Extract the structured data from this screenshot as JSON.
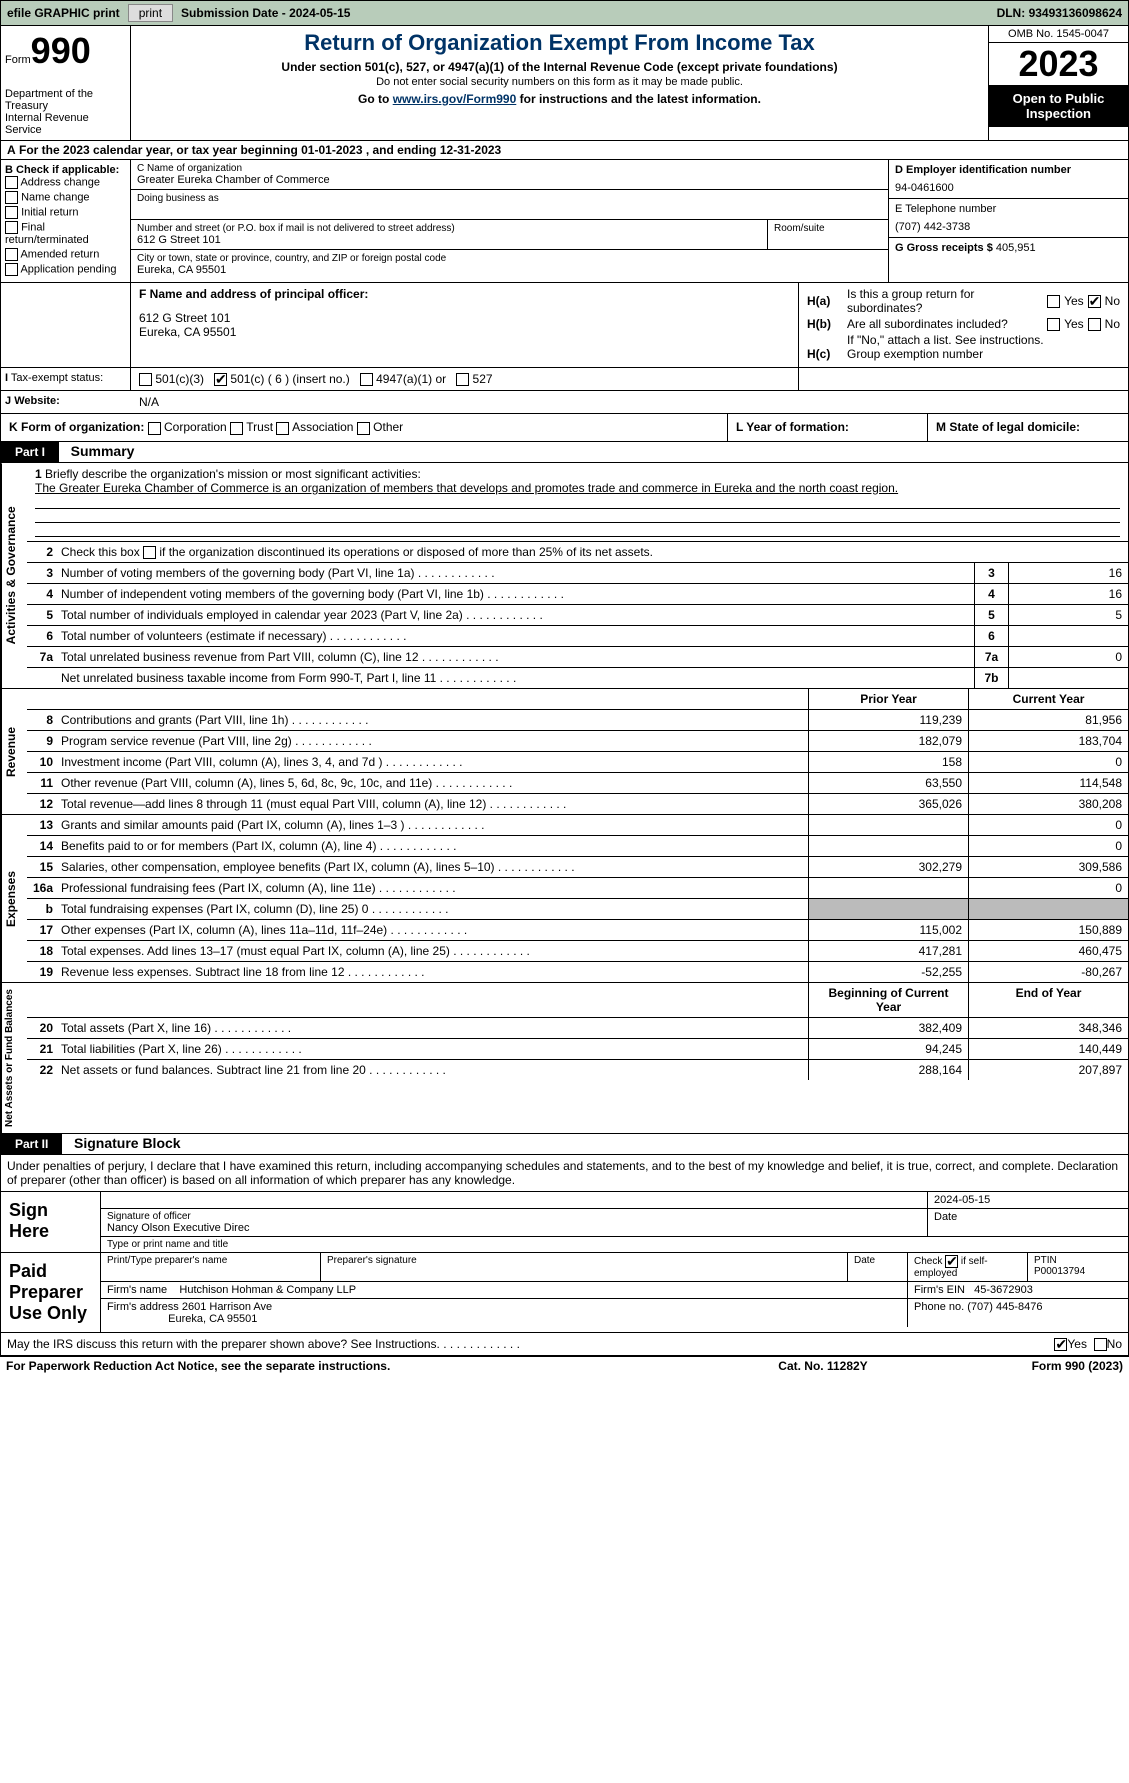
{
  "topbar": {
    "efile": "efile GRAPHIC print",
    "print_btn": "print",
    "subdate_lbl": "Submission Date - ",
    "subdate": "2024-05-15",
    "dln_lbl": "DLN: ",
    "dln": "93493136098624"
  },
  "header": {
    "form_word": "Form",
    "form_num": "990",
    "dept": "Department of the Treasury\nInternal Revenue Service",
    "title": "Return of Organization Exempt From Income Tax",
    "sub": "Under section 501(c), 527, or 4947(a)(1) of the Internal Revenue Code (except private foundations)",
    "sub2": "Do not enter social security numbers on this form as it may be made public.",
    "goto_pre": "Go to ",
    "goto_link": "www.irs.gov/Form990",
    "goto_post": " for instructions and the latest information.",
    "omb": "OMB No. 1545-0047",
    "year": "2023",
    "open": "Open to Public Inspection"
  },
  "rowA": {
    "k": "A",
    "text": "For the 2023 calendar year, or tax year beginning 01-01-2023    , and ending 12-31-2023"
  },
  "B": {
    "lbl": "B Check if applicable:",
    "items": [
      "Address change",
      "Name change",
      "Initial return",
      "Final return/terminated",
      "Amended return",
      "Application pending"
    ]
  },
  "C": {
    "name_lbl": "C Name of organization",
    "name": "Greater Eureka Chamber of Commerce",
    "dba_lbl": "Doing business as",
    "ns_lbl": "Number and street (or P.O. box if mail is not delivered to street address)",
    "ns": "612 G Street 101",
    "room_lbl": "Room/suite",
    "city_lbl": "City or town, state or province, country, and ZIP or foreign postal code",
    "city": "Eureka, CA  95501"
  },
  "D": {
    "lbl": "D Employer identification number",
    "val": "94-0461600"
  },
  "E": {
    "lbl": "E Telephone number",
    "val": "(707) 442-3738"
  },
  "G": {
    "lbl": "G Gross receipts $ ",
    "val": "405,951"
  },
  "F": {
    "lbl": "F  Name and address of principal officer:",
    "addr1": "612 G Street 101",
    "addr2": "Eureka, CA  95501"
  },
  "H": {
    "a": "Is this a group return for subordinates?",
    "b": "Are all subordinates included?",
    "note": "If \"No,\" attach a list. See instructions.",
    "c": "Group exemption number",
    "yes": "Yes",
    "no": "No"
  },
  "I": {
    "lbl": "Tax-exempt status:",
    "c3": "501(c)(3)",
    "c": "501(c) ( 6 ) (insert no.)",
    "a1": "4947(a)(1) or",
    "s527": "527"
  },
  "J": {
    "lbl": "Website:",
    "val": "N/A"
  },
  "K": {
    "lbl": "K Form of organization:",
    "opts": [
      "Corporation",
      "Trust",
      "Association",
      "Other"
    ]
  },
  "L": {
    "lbl": "L Year of formation:"
  },
  "M": {
    "lbl": "M State of legal domicile:"
  },
  "part1": {
    "hdr": "Part I",
    "title": "Summary"
  },
  "mission": {
    "n": "1",
    "lbl": "Briefly describe the organization's mission or most significant activities:",
    "text": "The Greater Eureka Chamber of Commerce is an organization of members that develops and promotes trade and commerce in Eureka and the north coast region."
  },
  "line2": {
    "n": "2",
    "text": "Check this box       if the organization discontinued its operations or disposed of more than 25% of its net assets."
  },
  "gov": {
    "label": "Activities & Governance",
    "rows": [
      {
        "n": "3",
        "t": "Number of voting members of the governing body (Part VI, line 1a)",
        "bn": "3",
        "bv": "16"
      },
      {
        "n": "4",
        "t": "Number of independent voting members of the governing body (Part VI, line 1b)",
        "bn": "4",
        "bv": "16"
      },
      {
        "n": "5",
        "t": "Total number of individuals employed in calendar year 2023 (Part V, line 2a)",
        "bn": "5",
        "bv": "5"
      },
      {
        "n": "6",
        "t": "Total number of volunteers (estimate if necessary)",
        "bn": "6",
        "bv": ""
      },
      {
        "n": "7a",
        "t": "Total unrelated business revenue from Part VIII, column (C), line 12",
        "bn": "7a",
        "bv": "0"
      },
      {
        "n": "",
        "t": "Net unrelated business taxable income from Form 990-T, Part I, line 11",
        "bn": "7b",
        "bv": ""
      }
    ]
  },
  "rev": {
    "label": "Revenue",
    "hdr_py": "Prior Year",
    "hdr_cy": "Current Year",
    "rows": [
      {
        "n": "8",
        "t": "Contributions and grants (Part VIII, line 1h)",
        "py": "119,239",
        "cy": "81,956"
      },
      {
        "n": "9",
        "t": "Program service revenue (Part VIII, line 2g)",
        "py": "182,079",
        "cy": "183,704"
      },
      {
        "n": "10",
        "t": "Investment income (Part VIII, column (A), lines 3, 4, and 7d )",
        "py": "158",
        "cy": "0"
      },
      {
        "n": "11",
        "t": "Other revenue (Part VIII, column (A), lines 5, 6d, 8c, 9c, 10c, and 11e)",
        "py": "63,550",
        "cy": "114,548"
      },
      {
        "n": "12",
        "t": "Total revenue—add lines 8 through 11 (must equal Part VIII, column (A), line 12)",
        "py": "365,026",
        "cy": "380,208"
      }
    ]
  },
  "exp": {
    "label": "Expenses",
    "rows": [
      {
        "n": "13",
        "t": "Grants and similar amounts paid (Part IX, column (A), lines 1–3 )",
        "py": "",
        "cy": "0"
      },
      {
        "n": "14",
        "t": "Benefits paid to or for members (Part IX, column (A), line 4)",
        "py": "",
        "cy": "0"
      },
      {
        "n": "15",
        "t": "Salaries, other compensation, employee benefits (Part IX, column (A), lines 5–10)",
        "py": "302,279",
        "cy": "309,586"
      },
      {
        "n": "16a",
        "t": "Professional fundraising fees (Part IX, column (A), line 11e)",
        "py": "",
        "cy": "0"
      },
      {
        "n": "b",
        "t": "Total fundraising expenses (Part IX, column (D), line 25) 0",
        "py": "SHADE",
        "cy": "SHADE"
      },
      {
        "n": "17",
        "t": "Other expenses (Part IX, column (A), lines 11a–11d, 11f–24e)",
        "py": "115,002",
        "cy": "150,889"
      },
      {
        "n": "18",
        "t": "Total expenses. Add lines 13–17 (must equal Part IX, column (A), line 25)",
        "py": "417,281",
        "cy": "460,475"
      },
      {
        "n": "19",
        "t": "Revenue less expenses. Subtract line 18 from line 12",
        "py": "-52,255",
        "cy": "-80,267"
      }
    ]
  },
  "net": {
    "label": "Net Assets or Fund Balances",
    "hdr_py": "Beginning of Current Year",
    "hdr_cy": "End of Year",
    "rows": [
      {
        "n": "20",
        "t": "Total assets (Part X, line 16)",
        "py": "382,409",
        "cy": "348,346"
      },
      {
        "n": "21",
        "t": "Total liabilities (Part X, line 26)",
        "py": "94,245",
        "cy": "140,449"
      },
      {
        "n": "22",
        "t": "Net assets or fund balances. Subtract line 21 from line 20",
        "py": "288,164",
        "cy": "207,897"
      }
    ]
  },
  "part2": {
    "hdr": "Part II",
    "title": "Signature Block"
  },
  "sig": {
    "decl": "Under penalties of perjury, I declare that I have examined this return, including accompanying schedules and statements, and to the best of my knowledge and belief, it is true, correct, and complete. Declaration of preparer (other than officer) is based on all information of which preparer has any knowledge.",
    "sign_here": "Sign Here",
    "sig_off": "Signature of officer",
    "date": "2024-05-15",
    "officer": "Nancy Olson  Executive Direc",
    "type_lbl": "Type or print name and title",
    "paid": "Paid Preparer Use Only",
    "prep_name_lbl": "Print/Type preparer's name",
    "prep_sig_lbl": "Preparer's signature",
    "date_lbl": "Date",
    "check_lbl": "Check        if self-employed",
    "ptin_lbl": "PTIN",
    "ptin": "P00013794",
    "firm_name_lbl": "Firm's name",
    "firm_name": "Hutchison Hohman & Company LLP",
    "firm_ein_lbl": "Firm's EIN",
    "firm_ein": "45-3672903",
    "firm_addr_lbl": "Firm's address",
    "firm_addr": "2601 Harrison Ave",
    "firm_city": "Eureka, CA  95501",
    "phone_lbl": "Phone no.",
    "phone": "(707) 445-8476"
  },
  "irs_q": "May the IRS discuss this return with the preparer shown above? See Instructions.",
  "footer": {
    "l": "For Paperwork Reduction Act Notice, see the separate instructions.",
    "c": "Cat. No. 11282Y",
    "r": "Form 990 (2023)"
  },
  "colors": {
    "hdr_title": "#003366",
    "topbar_bg": "#b8ccba",
    "black": "#000000",
    "shade": "#bbbbbb"
  }
}
